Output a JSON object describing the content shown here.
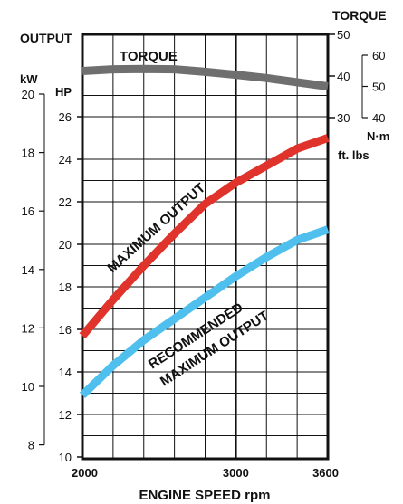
{
  "chart_data": {
    "type": "line",
    "xlabel": "ENGINE SPEED  rpm",
    "x_ticks": [
      "2000",
      "3000",
      "3600"
    ],
    "xlim": [
      2000,
      3600
    ],
    "output_label": "OUTPUT",
    "kw_unit": "kW",
    "hp_unit": "HP",
    "kw_ticks": [
      "20",
      "18",
      "16",
      "14",
      "12",
      "10",
      "8"
    ],
    "hp_ticks": [
      "26",
      "24",
      "22",
      "20",
      "18",
      "16",
      "14",
      "12",
      "10"
    ],
    "hp_range": [
      10,
      28
    ],
    "torque_label": "TORQUE",
    "nm_unit": "N·m",
    "ftlb_unit": "ft. lbs",
    "nm_ticks": [
      "50",
      "40",
      "30"
    ],
    "ftlb_ticks": [
      "60",
      "50",
      "40"
    ],
    "grid": true,
    "series": [
      {
        "name": "TORQUE",
        "axis": "N·m",
        "color": "#6f6f6f",
        "x": [
          2000,
          2200,
          2400,
          2600,
          2800,
          3000,
          3200,
          3400,
          3600
        ],
        "y": [
          41.2,
          41.6,
          41.7,
          41.6,
          41.0,
          40.3,
          39.5,
          38.5,
          37.5
        ]
      },
      {
        "name": "MAXIMUM OUTPUT",
        "axis": "HP",
        "color": "#e0332b",
        "x": [
          2000,
          2200,
          2400,
          2600,
          2800,
          3000,
          3200,
          3400,
          3600
        ],
        "y": [
          15.7,
          17.4,
          19.0,
          20.5,
          21.9,
          22.9,
          23.7,
          24.5,
          25.0
        ]
      },
      {
        "name": "RECOMMENDED MAXIMUM OUTPUT",
        "axis": "HP",
        "color": "#4fc0ee",
        "x": [
          2000,
          2200,
          2400,
          2600,
          2800,
          3000,
          3200,
          3400,
          3600
        ],
        "y": [
          12.9,
          14.3,
          15.5,
          16.5,
          17.5,
          18.5,
          19.4,
          20.2,
          20.7
        ]
      }
    ]
  }
}
